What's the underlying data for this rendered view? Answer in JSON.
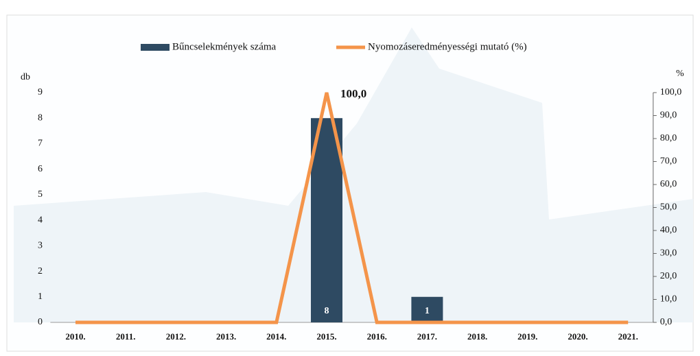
{
  "chart_data": {
    "type": "bar",
    "categories": [
      "2010.",
      "2011.",
      "2012.",
      "2013.",
      "2014.",
      "2015.",
      "2016.",
      "2017.",
      "2018.",
      "2019.",
      "2020.",
      "2021."
    ],
    "series": [
      {
        "name": "Bűncselekmények száma",
        "color": "#2e4a62",
        "values": [
          0,
          0,
          0,
          0,
          0,
          8,
          0,
          1,
          0,
          0,
          0,
          0
        ],
        "value_labels": [
          null,
          null,
          null,
          null,
          null,
          "8",
          null,
          "1",
          null,
          null,
          null,
          null
        ]
      },
      {
        "name": "Nyomozáseredményességi mutató (%)",
        "type": "line",
        "axis": "y2",
        "color": "#f4944a",
        "values": [
          0,
          0,
          0,
          0,
          0,
          100,
          0,
          0,
          0,
          0,
          0,
          0
        ],
        "value_labels": [
          null,
          null,
          null,
          null,
          null,
          "100,0",
          null,
          null,
          null,
          null,
          null,
          null
        ]
      }
    ],
    "ylabel": "db",
    "y2label": "%",
    "ylim": [
      0,
      9
    ],
    "yticks": [
      0,
      1,
      2,
      3,
      4,
      5,
      6,
      7,
      8,
      9
    ],
    "y2lim": [
      0,
      100
    ],
    "y2ticks": [
      {
        "value": 0,
        "label": "0,0"
      },
      {
        "value": 10,
        "label": "10,0"
      },
      {
        "value": 20,
        "label": "20,0"
      },
      {
        "value": 30,
        "label": "30,0"
      },
      {
        "value": 40,
        "label": "40,0"
      },
      {
        "value": 50,
        "label": "50,0"
      },
      {
        "value": 60,
        "label": "60,0"
      },
      {
        "value": 70,
        "label": "70,0"
      },
      {
        "value": 80,
        "label": "80,0"
      },
      {
        "value": 90,
        "label": "90,0"
      },
      {
        "value": 100,
        "label": "100,0"
      }
    ],
    "legend": "top"
  }
}
